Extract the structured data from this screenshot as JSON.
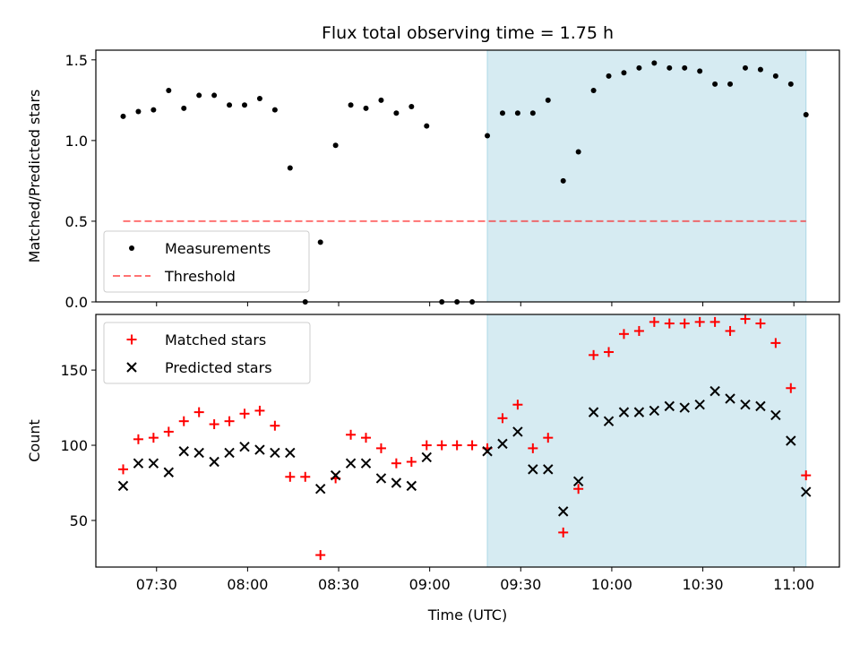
{
  "title": "Flux total observing time = 1.75 h",
  "colors": {
    "shade": "#add8e6",
    "threshold": "#ff0000",
    "measurement": "#000000",
    "matched": "#ff0000",
    "predicted": "#000000"
  },
  "chart_data": [
    {
      "type": "scatter",
      "ylabel": "Matched/Predicted stars",
      "ylim": [
        0,
        1.56
      ],
      "yticks": [
        {
          "v": 0.0,
          "label": "0.0"
        },
        {
          "v": 0.5,
          "label": "0.5"
        },
        {
          "v": 1.0,
          "label": "1.0"
        },
        {
          "v": 1.5,
          "label": "1.5"
        }
      ],
      "legend": {
        "placement": "lower-left",
        "entries": [
          "Measurements",
          "Threshold"
        ]
      },
      "series": [
        {
          "name": "Measurements",
          "marker": "dot",
          "x": [
            "07:19",
            "07:24",
            "07:29",
            "07:34",
            "07:39",
            "07:44",
            "07:49",
            "07:54",
            "07:59",
            "08:04",
            "08:09",
            "08:14",
            "08:19",
            "08:24",
            "08:29",
            "08:34",
            "08:39",
            "08:44",
            "08:49",
            "08:54",
            "08:59",
            "09:04",
            "09:09",
            "09:14",
            "09:19",
            "09:24",
            "09:29",
            "09:34",
            "09:39",
            "09:44",
            "09:49",
            "09:54",
            "09:59",
            "10:04",
            "10:09",
            "10:14",
            "10:19",
            "10:24",
            "10:29",
            "10:34",
            "10:39",
            "10:44",
            "10:49",
            "10:54",
            "10:59",
            "11:04"
          ],
          "y": [
            1.15,
            1.18,
            1.19,
            1.31,
            1.2,
            1.28,
            1.28,
            1.22,
            1.22,
            1.26,
            1.19,
            0.83,
            0.0,
            0.37,
            0.97,
            1.22,
            1.2,
            1.25,
            1.17,
            1.21,
            1.09,
            0.0,
            0.0,
            0.0,
            1.03,
            1.17,
            1.17,
            1.17,
            1.25,
            0.75,
            0.93,
            1.31,
            1.4,
            1.42,
            1.45,
            1.48,
            1.45,
            1.45,
            1.43,
            1.35,
            1.35,
            1.45,
            1.44,
            1.4,
            1.35,
            1.16
          ]
        },
        {
          "name": "Threshold",
          "marker": "dashed-line",
          "x": [
            "07:19",
            "11:04"
          ],
          "y": [
            0.5,
            0.5
          ]
        }
      ]
    },
    {
      "type": "scatter",
      "ylabel": "Count",
      "xlabel": "Time (UTC)",
      "ylim": [
        19,
        187
      ],
      "yticks": [
        {
          "v": 50,
          "label": "50"
        },
        {
          "v": 100,
          "label": "100"
        },
        {
          "v": 150,
          "label": "150"
        }
      ],
      "xticks": [
        {
          "t": "07:30",
          "label": "07:30"
        },
        {
          "t": "08:00",
          "label": "08:00"
        },
        {
          "t": "08:30",
          "label": "08:30"
        },
        {
          "t": "09:00",
          "label": "09:00"
        },
        {
          "t": "09:30",
          "label": "09:30"
        },
        {
          "t": "10:00",
          "label": "10:00"
        },
        {
          "t": "10:30",
          "label": "10:30"
        },
        {
          "t": "11:00",
          "label": "11:00"
        }
      ],
      "xlim": [
        "07:10",
        "11:15"
      ],
      "shaded_region": [
        "09:19",
        "11:04"
      ],
      "legend": {
        "placement": "upper-left",
        "entries": [
          "Matched stars",
          "Predicted stars"
        ]
      },
      "series": [
        {
          "name": "Matched stars",
          "marker": "plus",
          "x": [
            "07:19",
            "07:24",
            "07:29",
            "07:34",
            "07:39",
            "07:44",
            "07:49",
            "07:54",
            "07:59",
            "08:04",
            "08:09",
            "08:14",
            "08:19",
            "08:24",
            "08:29",
            "08:34",
            "08:39",
            "08:44",
            "08:49",
            "08:54",
            "08:59",
            "09:04",
            "09:09",
            "09:14",
            "09:19",
            "09:24",
            "09:29",
            "09:34",
            "09:39",
            "09:44",
            "09:49",
            "09:54",
            "09:59",
            "10:04",
            "10:09",
            "10:14",
            "10:19",
            "10:24",
            "10:29",
            "10:34",
            "10:39",
            "10:44",
            "10:49",
            "10:54",
            "10:59",
            "11:04"
          ],
          "y": [
            84,
            104,
            105,
            109,
            116,
            122,
            114,
            116,
            121,
            123,
            113,
            79,
            79,
            27,
            78,
            107,
            105,
            98,
            88,
            89,
            100,
            100,
            100,
            100,
            98,
            118,
            127,
            98,
            105,
            42,
            71,
            160,
            162,
            174,
            176,
            182,
            181,
            181,
            182,
            182,
            176,
            184,
            181,
            168,
            138,
            80
          ]
        },
        {
          "name": "Predicted stars",
          "marker": "x",
          "x": [
            "07:19",
            "07:24",
            "07:29",
            "07:34",
            "07:39",
            "07:44",
            "07:49",
            "07:54",
            "07:59",
            "08:04",
            "08:09",
            "08:14",
            "08:24",
            "08:29",
            "08:34",
            "08:39",
            "08:44",
            "08:49",
            "08:54",
            "08:59",
            "09:19",
            "09:24",
            "09:29",
            "09:34",
            "09:39",
            "09:44",
            "09:49",
            "09:54",
            "09:59",
            "10:04",
            "10:09",
            "10:14",
            "10:19",
            "10:24",
            "10:29",
            "10:34",
            "10:39",
            "10:44",
            "10:49",
            "10:54",
            "10:59",
            "11:04"
          ],
          "y": [
            73,
            88,
            88,
            82,
            96,
            95,
            89,
            95,
            99,
            97,
            95,
            95,
            71,
            80,
            88,
            88,
            78,
            75,
            73,
            92,
            96,
            101,
            109,
            84,
            84,
            56,
            76,
            122,
            116,
            122,
            122,
            123,
            126,
            125,
            127,
            136,
            131,
            127,
            126,
            120,
            103,
            69
          ]
        }
      ]
    }
  ]
}
